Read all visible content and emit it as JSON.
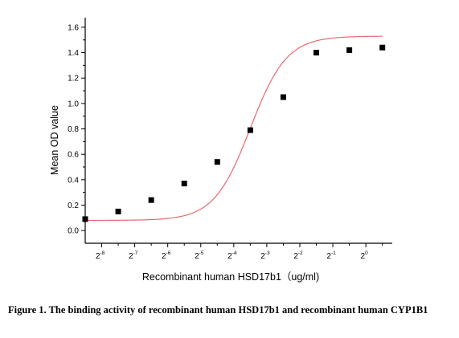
{
  "chart_data": {
    "type": "scatter",
    "xlabel": "Recombinant human HSD17b1（ug/ml)",
    "ylabel": "Mean OD value",
    "x_scale": "log2",
    "xlim_exponent": [
      -8.5,
      0.8
    ],
    "ylim": [
      -0.1,
      1.65
    ],
    "y_ticks": [
      0.0,
      0.2,
      0.4,
      0.6,
      0.8,
      1.0,
      1.2,
      1.4,
      1.6
    ],
    "y_tick_labels": [
      "0.0",
      "0.2",
      "0.4",
      "0.6",
      "0.8",
      "1.0",
      "1.2",
      "1.4",
      "1.6"
    ],
    "x_tick_exponents": [
      -8,
      -7,
      -6,
      -5,
      -4,
      -3,
      -2,
      -1,
      0
    ],
    "x_tick_labels": [
      {
        "base": "2",
        "exp": "-8"
      },
      {
        "base": "2",
        "exp": "-7"
      },
      {
        "base": "2",
        "exp": "-6"
      },
      {
        "base": "2",
        "exp": "-5"
      },
      {
        "base": "2",
        "exp": "-4"
      },
      {
        "base": "2",
        "exp": "-3"
      },
      {
        "base": "2",
        "exp": "-2"
      },
      {
        "base": "2",
        "exp": "-1"
      },
      {
        "base": "2",
        "exp": "0"
      }
    ],
    "series": [
      {
        "marker": "square",
        "color": "#000000",
        "x_exponent": [
          -8.5,
          -7.5,
          -6.5,
          -5.5,
          -4.5,
          -3.5,
          -2.5,
          -1.5,
          -0.5,
          0.5
        ],
        "y": [
          0.09,
          0.15,
          0.24,
          0.37,
          0.54,
          0.79,
          1.05,
          1.4,
          1.42,
          1.44
        ]
      }
    ],
    "fit_curve": {
      "type": "4PL",
      "color": "#e8696b",
      "params": {
        "bottom": 0.08,
        "top": 1.53,
        "mid_exponent": -3.5,
        "slope": 0.55
      }
    },
    "grid": false,
    "legend": "none"
  },
  "caption": "Figure 1. The binding activity of recombinant human HSD17b1 and recombinant human CYP1B1"
}
